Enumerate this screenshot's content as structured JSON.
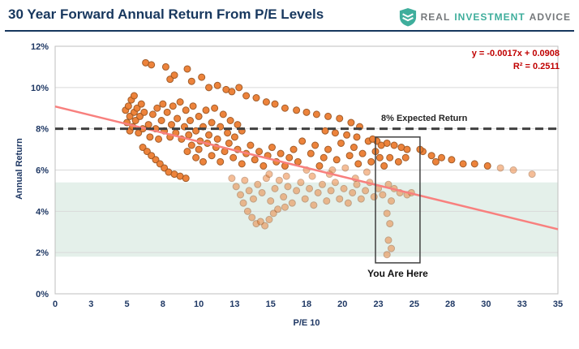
{
  "header": {
    "title": "30 Year Forward Annual Return From P/E Levels",
    "logo": {
      "word1": "REAL",
      "word2": "INVESTMENT",
      "word3": "ADVICE"
    }
  },
  "chart_data": {
    "type": "scatter",
    "title": "30 Year Forward Annual Return From P/E Levels",
    "xlabel": "P/E 10",
    "ylabel": "Annual Return",
    "xlim": [
      0,
      35
    ],
    "ylim_pct": [
      0,
      12
    ],
    "x_tick_pos": [
      0,
      2.5,
      5,
      7.5,
      10,
      12.5,
      15,
      17.5,
      20,
      22.5,
      25,
      27.5,
      30,
      32.5,
      35
    ],
    "x_tick_labels": [
      "0",
      "3",
      "5",
      "8",
      "10",
      "13",
      "15",
      "18",
      "20",
      "23",
      "25",
      "28",
      "30",
      "33",
      "35"
    ],
    "y_tick_pos": [
      0,
      2,
      4,
      6,
      8,
      10,
      12
    ],
    "y_tick_labels": [
      "0%",
      "2%",
      "4%",
      "6%",
      "8%",
      "10%",
      "12%"
    ],
    "grid": "horizontal",
    "legend": "none",
    "trendline": {
      "equation": "y = -0.0017x + 0.0908",
      "r2": "R² = 0.2511",
      "slope_pct_per_x": -0.17,
      "intercept_pct": 9.08,
      "color": "#F8807E"
    },
    "expected_return_line": {
      "value_pct": 8,
      "label": "8% Expected Return",
      "color": "#404040"
    },
    "band": {
      "y0_pct": 1.8,
      "y1_pct": 5.4,
      "color": "#E4F0EA"
    },
    "you_are_here_box": {
      "x0": 22.3,
      "x1": 25.4,
      "y0_pct": 1.5,
      "y1_pct": 7.6,
      "label": "You Are Here",
      "color": "#404040"
    },
    "colors": {
      "dot_fill": "#ED7D31",
      "dot_stroke": "#9C5520",
      "gridline": "#D9D9D9",
      "plot_border": "#BFBFBF",
      "axis_text": "#1F3864"
    },
    "points": [
      [
        4.9,
        8.9
      ],
      [
        5.0,
        8.3
      ],
      [
        5.1,
        9.1
      ],
      [
        5.2,
        8.6
      ],
      [
        5.2,
        7.9
      ],
      [
        5.3,
        9.4
      ],
      [
        5.4,
        8.1
      ],
      [
        5.5,
        8.8
      ],
      [
        5.5,
        9.6
      ],
      [
        5.6,
        8.4
      ],
      [
        5.7,
        9.0
      ],
      [
        5.8,
        7.8
      ],
      [
        5.9,
        8.6
      ],
      [
        6.0,
        9.2
      ],
      [
        6.1,
        8.0
      ],
      [
        6.2,
        8.8
      ],
      [
        6.3,
        11.2
      ],
      [
        6.7,
        11.1
      ],
      [
        7.7,
        11.0
      ],
      [
        8.0,
        10.4
      ],
      [
        8.3,
        10.6
      ],
      [
        9.2,
        10.9
      ],
      [
        9.5,
        10.3
      ],
      [
        10.2,
        10.5
      ],
      [
        10.7,
        10.0
      ],
      [
        11.3,
        10.1
      ],
      [
        11.9,
        9.9
      ],
      [
        12.3,
        9.8
      ],
      [
        12.8,
        10.0
      ],
      [
        13.3,
        9.6
      ],
      [
        14.0,
        9.5
      ],
      [
        14.7,
        9.3
      ],
      [
        15.3,
        9.2
      ],
      [
        16.0,
        9.0
      ],
      [
        16.8,
        8.9
      ],
      [
        17.5,
        8.8
      ],
      [
        18.2,
        8.7
      ],
      [
        19.0,
        8.6
      ],
      [
        19.8,
        8.5
      ],
      [
        20.6,
        8.3
      ],
      [
        21.2,
        8.1
      ],
      [
        6.5,
        8.2
      ],
      [
        6.6,
        7.6
      ],
      [
        6.8,
        8.7
      ],
      [
        7.0,
        8.0
      ],
      [
        7.1,
        9.0
      ],
      [
        7.2,
        7.5
      ],
      [
        7.4,
        8.4
      ],
      [
        7.5,
        9.2
      ],
      [
        7.6,
        7.9
      ],
      [
        7.8,
        8.8
      ],
      [
        8.0,
        7.6
      ],
      [
        8.1,
        8.2
      ],
      [
        8.2,
        9.1
      ],
      [
        8.4,
        7.8
      ],
      [
        8.5,
        8.5
      ],
      [
        8.7,
        9.3
      ],
      [
        8.8,
        7.5
      ],
      [
        9.0,
        8.1
      ],
      [
        9.1,
        8.9
      ],
      [
        9.3,
        7.7
      ],
      [
        9.4,
        8.4
      ],
      [
        9.6,
        9.1
      ],
      [
        9.8,
        7.9
      ],
      [
        10.0,
        8.6
      ],
      [
        10.1,
        7.4
      ],
      [
        10.3,
        8.1
      ],
      [
        10.5,
        8.9
      ],
      [
        10.7,
        7.7
      ],
      [
        10.9,
        8.3
      ],
      [
        11.1,
        9.0
      ],
      [
        11.3,
        7.5
      ],
      [
        11.5,
        8.1
      ],
      [
        11.7,
        8.7
      ],
      [
        12.0,
        7.8
      ],
      [
        12.2,
        8.4
      ],
      [
        12.5,
        7.6
      ],
      [
        12.7,
        8.2
      ],
      [
        13.0,
        7.9
      ],
      [
        6.1,
        7.1
      ],
      [
        6.4,
        6.9
      ],
      [
        6.7,
        6.7
      ],
      [
        7.0,
        6.5
      ],
      [
        7.3,
        6.3
      ],
      [
        7.6,
        6.1
      ],
      [
        7.9,
        5.9
      ],
      [
        8.3,
        5.8
      ],
      [
        8.7,
        5.7
      ],
      [
        9.1,
        5.6
      ],
      [
        9.2,
        6.9
      ],
      [
        9.5,
        7.2
      ],
      [
        9.8,
        6.6
      ],
      [
        10.0,
        7.0
      ],
      [
        10.3,
        6.4
      ],
      [
        10.6,
        7.3
      ],
      [
        10.9,
        6.7
      ],
      [
        11.2,
        7.1
      ],
      [
        11.5,
        6.4
      ],
      [
        11.8,
        6.9
      ],
      [
        12.1,
        7.3
      ],
      [
        12.4,
        6.6
      ],
      [
        12.7,
        7.0
      ],
      [
        13.0,
        6.3
      ],
      [
        13.3,
        6.8
      ],
      [
        13.6,
        7.2
      ],
      [
        13.9,
        6.5
      ],
      [
        14.2,
        6.9
      ],
      [
        14.5,
        6.2
      ],
      [
        14.8,
        6.7
      ],
      [
        15.1,
        7.1
      ],
      [
        15.4,
        6.4
      ],
      [
        15.7,
        6.8
      ],
      [
        16.0,
        6.2
      ],
      [
        16.3,
        6.6
      ],
      [
        16.6,
        7.0
      ],
      [
        16.9,
        6.4
      ],
      [
        17.2,
        7.4
      ],
      [
        17.5,
        6.0
      ],
      [
        17.8,
        6.8
      ],
      [
        18.1,
        7.2
      ],
      [
        18.4,
        6.2
      ],
      [
        18.7,
        6.6
      ],
      [
        19.0,
        7.0
      ],
      [
        19.3,
        6.0
      ],
      [
        19.6,
        6.5
      ],
      [
        19.9,
        7.3
      ],
      [
        20.2,
        6.1
      ],
      [
        20.5,
        6.7
      ],
      [
        20.8,
        7.1
      ],
      [
        21.1,
        6.3
      ],
      [
        21.4,
        6.8
      ],
      [
        21.7,
        5.9
      ],
      [
        22.0,
        6.4
      ],
      [
        22.3,
        6.9
      ],
      [
        21.0,
        7.6
      ],
      [
        20.3,
        7.7
      ],
      [
        19.5,
        7.8
      ],
      [
        18.8,
        7.9
      ],
      [
        21.8,
        7.4
      ],
      [
        12.3,
        5.6
      ],
      [
        12.6,
        5.2
      ],
      [
        12.9,
        4.8
      ],
      [
        13.2,
        5.5
      ],
      [
        13.5,
        5.0
      ],
      [
        13.8,
        4.6
      ],
      [
        14.1,
        5.3
      ],
      [
        14.4,
        4.9
      ],
      [
        14.7,
        5.6
      ],
      [
        15.0,
        4.5
      ],
      [
        15.3,
        5.1
      ],
      [
        15.6,
        5.5
      ],
      [
        15.9,
        4.7
      ],
      [
        16.2,
        5.2
      ],
      [
        16.5,
        4.4
      ],
      [
        16.8,
        5.0
      ],
      [
        17.1,
        5.4
      ],
      [
        17.4,
        4.6
      ],
      [
        17.7,
        5.1
      ],
      [
        18.0,
        4.3
      ],
      [
        18.3,
        4.9
      ],
      [
        18.6,
        5.3
      ],
      [
        18.9,
        4.5
      ],
      [
        19.2,
        5.0
      ],
      [
        19.5,
        5.4
      ],
      [
        19.8,
        4.6
      ],
      [
        20.1,
        5.1
      ],
      [
        20.4,
        4.4
      ],
      [
        20.7,
        4.9
      ],
      [
        21.0,
        5.3
      ],
      [
        21.3,
        4.6
      ],
      [
        21.6,
        5.0
      ],
      [
        21.9,
        5.4
      ],
      [
        22.2,
        4.7
      ],
      [
        22.5,
        5.1
      ],
      [
        22.8,
        4.8
      ],
      [
        13.1,
        4.4
      ],
      [
        14.9,
        5.8
      ],
      [
        16.1,
        5.7
      ],
      [
        17.9,
        5.7
      ],
      [
        19.1,
        5.8
      ],
      [
        20.9,
        5.6
      ],
      [
        13.4,
        4.0
      ],
      [
        13.7,
        3.7
      ],
      [
        14.0,
        3.4
      ],
      [
        14.3,
        3.5
      ],
      [
        14.6,
        3.3
      ],
      [
        14.9,
        3.6
      ],
      [
        15.2,
        3.9
      ],
      [
        15.5,
        4.1
      ],
      [
        16.0,
        4.2
      ],
      [
        23.1,
        7.3
      ],
      [
        23.6,
        7.2
      ],
      [
        24.1,
        7.1
      ],
      [
        24.5,
        7.0
      ],
      [
        23.3,
        6.6
      ],
      [
        23.9,
        6.4
      ],
      [
        24.4,
        6.6
      ],
      [
        23.2,
        5.3
      ],
      [
        23.6,
        5.1
      ],
      [
        24.0,
        4.9
      ],
      [
        24.5,
        4.8
      ],
      [
        24.8,
        4.9
      ],
      [
        23.4,
        4.5
      ],
      [
        23.1,
        3.9
      ],
      [
        23.3,
        3.4
      ],
      [
        23.2,
        2.6
      ],
      [
        23.4,
        2.2
      ],
      [
        23.1,
        1.9
      ],
      [
        22.4,
        7.4
      ],
      [
        22.7,
        7.2
      ],
      [
        22.1,
        7.5
      ],
      [
        22.6,
        6.6
      ],
      [
        22.9,
        6.2
      ],
      [
        25.6,
        6.9
      ],
      [
        26.2,
        6.7
      ],
      [
        26.9,
        6.6
      ],
      [
        27.6,
        6.5
      ],
      [
        28.4,
        6.3
      ],
      [
        29.2,
        6.3
      ],
      [
        30.1,
        6.2
      ],
      [
        31.0,
        6.1
      ],
      [
        31.9,
        6.0
      ],
      [
        33.2,
        5.8
      ],
      [
        25.4,
        7.0
      ],
      [
        26.5,
        6.4
      ]
    ]
  }
}
